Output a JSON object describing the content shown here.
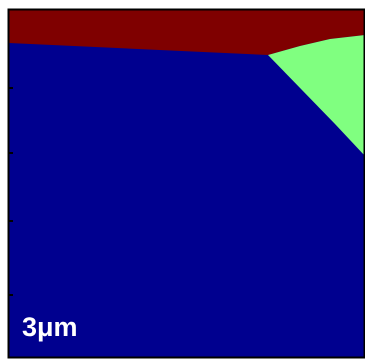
{
  "scale_bar": {
    "label": "3μm"
  }
}
